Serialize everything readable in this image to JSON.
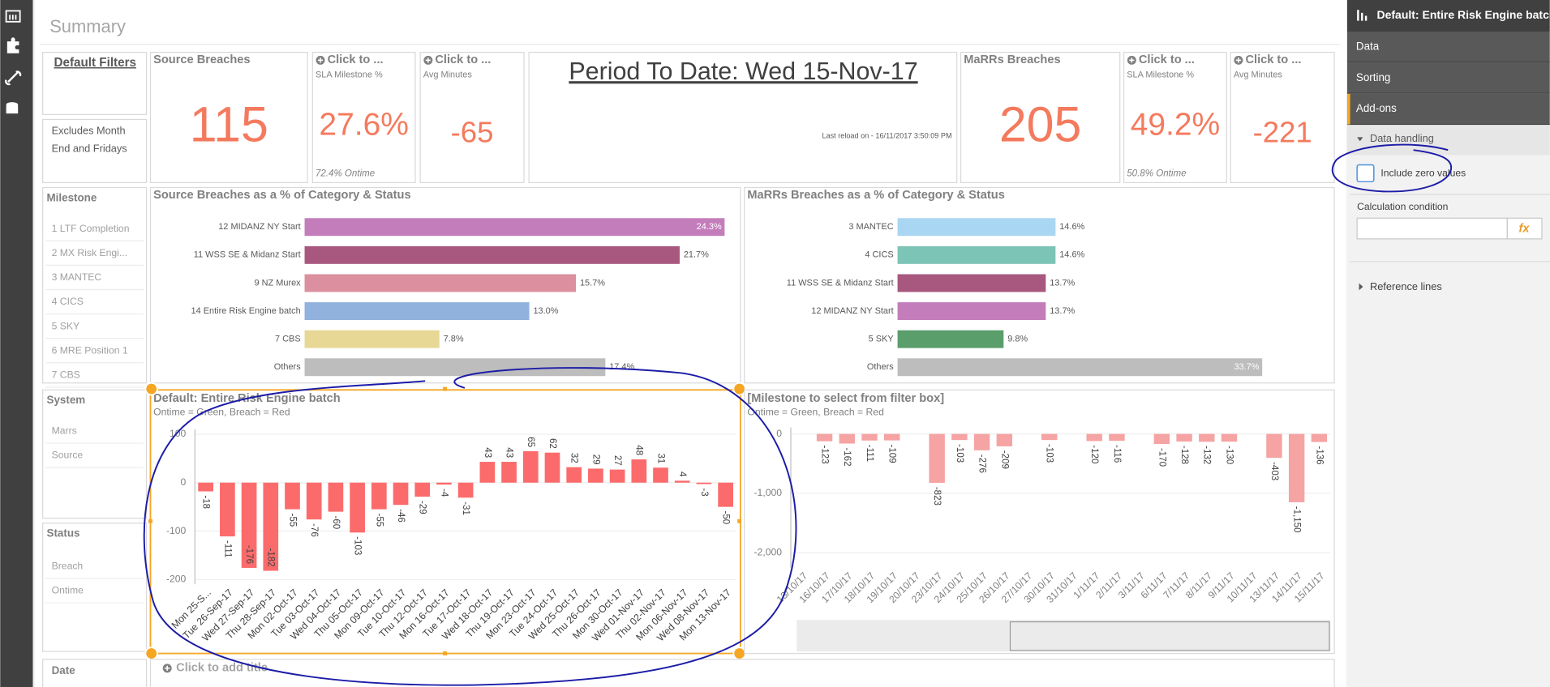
{
  "sheet": {
    "title": "Summary"
  },
  "filters": {
    "default_title": "Default Filters",
    "note": [
      "Excludes Month",
      "End and Fridays"
    ],
    "milestone": {
      "title": "Milestone",
      "items": [
        "1 LTF Completion",
        "2 MX Risk Engi...",
        "3 MANTEC",
        "4 CICS",
        "5 SKY",
        "6 MRE Position 1",
        "7 CBS"
      ]
    },
    "system": {
      "title": "System",
      "items": [
        "Marrs",
        "Source"
      ]
    },
    "status": {
      "title": "Status",
      "items": [
        "Breach",
        "Ontime"
      ]
    },
    "date": {
      "title": "Date"
    }
  },
  "kpis": [
    {
      "title": "Source Breaches",
      "value": 115
    },
    {
      "title": "Click to ...",
      "subtitle": "SLA Milestone %",
      "value": "27.6%",
      "footer": "72.4% Ontime"
    },
    {
      "title": "Click to ...",
      "subtitle": "Avg Minutes",
      "value": -65
    },
    {
      "title": "MaRRs Breaches",
      "value": 205
    },
    {
      "title": "Click to ...",
      "subtitle": "SLA Milestone %",
      "value": "49.2%",
      "footer": "50.8% Ontime"
    },
    {
      "title": "Click to ...",
      "subtitle": "Avg Minutes",
      "value": -221
    }
  ],
  "period": {
    "title": "Period To Date: Wed 15-Nov-17",
    "reload": "Last reload on - 16/11/2017 3:50:09 PM"
  },
  "charts": [
    {
      "type": "bar",
      "orientation": "horizontal",
      "title": "Source Breaches as a % of Category & Status",
      "categories": [
        "12 MIDANZ NY Start",
        "11 WSS SE & Midanz Start",
        "9 NZ Murex",
        "14 Entire Risk Engine batch",
        "7 CBS",
        "Others"
      ],
      "values": [
        24.3,
        21.7,
        15.7,
        13.0,
        7.8,
        17.4
      ],
      "value_labels": [
        "24.3%",
        "21.7%",
        "15.7%",
        "13.0%",
        "7.8%",
        "17.4%"
      ],
      "colors": [
        "#c47dbb",
        "#a8587f",
        "#dc8f9e",
        "#90b2dc",
        "#e8d896",
        "#bdbdbd"
      ],
      "xlim": [
        0,
        24.3
      ]
    },
    {
      "type": "bar",
      "orientation": "horizontal",
      "title": "MaRRs Breaches as a % of Category & Status",
      "categories": [
        "3 MANTEC",
        "4 CICS",
        "11 WSS SE & Midanz Start",
        "12 MIDANZ NY Start",
        "5 SKY",
        "Others"
      ],
      "values": [
        14.6,
        14.6,
        13.7,
        13.7,
        9.8,
        33.7
      ],
      "value_labels": [
        "14.6%",
        "14.6%",
        "13.7%",
        "13.7%",
        "9.8%",
        "33.7%"
      ],
      "colors": [
        "#a9d6f2",
        "#7cc4b5",
        "#a8587f",
        "#c47dbb",
        "#5a9e6b",
        "#bdbdbd"
      ],
      "xlim": [
        0,
        33.7
      ]
    },
    {
      "type": "bar",
      "orientation": "vertical",
      "title": "Default: Entire Risk Engine batch",
      "subtitle": "Ontime = Green, Breach = Red",
      "categories": [
        "Mon 25-S...",
        "Tue 26-Sep-17",
        "Wed 27-Sep-17",
        "Thu 28-Sep-17",
        "Mon 02-Oct-17",
        "Tue 03-Oct-17",
        "Wed 04-Oct-17",
        "Thu 05-Oct-17",
        "Mon 09-Oct-17",
        "Tue 10-Oct-17",
        "Thu 12-Oct-17",
        "Mon 16-Oct-17",
        "Tue 17-Oct-17",
        "Wed 18-Oct-17",
        "Thu 19-Oct-17",
        "Mon 23-Oct-17",
        "Tue 24-Oct-17",
        "Wed 25-Oct-17",
        "Thu 26-Oct-17",
        "Mon 30-Oct-17",
        "Wed 01-Nov-17",
        "Thu 02-Nov-17",
        "Mon 06-Nov-17",
        "Wed 08-Nov-17",
        "Mon 13-Nov-17"
      ],
      "values": [
        -18,
        -111,
        -176,
        -182,
        -55,
        -76,
        -60,
        -103,
        -55,
        -46,
        -29,
        -4,
        -31,
        43,
        43,
        65,
        62,
        32,
        29,
        27,
        48,
        31,
        4,
        -3,
        -50
      ],
      "color": "#fc6b6b",
      "ylim": [
        -210,
        110
      ],
      "yticks": [
        100,
        0,
        -100,
        -200
      ]
    },
    {
      "type": "bar",
      "orientation": "vertical",
      "title": "[Milestone to select from filter box]",
      "subtitle": "Ontime = Green, Breach = Red",
      "categories": [
        "13/10/17",
        "16/10/17",
        "17/10/17",
        "18/10/17",
        "19/10/17",
        "20/10/17",
        "23/10/17",
        "24/10/17",
        "25/10/17",
        "26/10/17",
        "27/10/17",
        "30/10/17",
        "31/10/17",
        "1/11/17",
        "2/11/17",
        "3/11/17",
        "6/11/17",
        "7/11/17",
        "8/11/17",
        "9/11/17",
        "10/11/17",
        "13/11/17",
        "14/11/17",
        "15/11/17"
      ],
      "values": [
        null,
        -123,
        -162,
        -111,
        -109,
        null,
        -823,
        -103,
        -276,
        -209,
        null,
        -103,
        null,
        -120,
        -116,
        null,
        -170,
        -128,
        -132,
        -130,
        null,
        -403,
        -1150,
        -136
      ],
      "value_labels": [
        null,
        "-123",
        "-162",
        "-111",
        "-109",
        null,
        "-823",
        "-103",
        "-276",
        "-209",
        null,
        "-103",
        null,
        "-120",
        "-116",
        null,
        "-170",
        "-128",
        "-132",
        "-130",
        null,
        "-403",
        "-1,150",
        "-136"
      ],
      "color": "#f5a3a3",
      "ylim": [
        -2250,
        110
      ],
      "yticks": [
        0,
        {
          "value": -1000,
          "label": "-1,000"
        },
        {
          "value": -2000,
          "label": "-2,000"
        }
      ]
    }
  ],
  "add_title": "Click to add title",
  "properties": {
    "header": "Default: Entire Risk Engine batch",
    "tabs": [
      "Data",
      "Sorting",
      "Add-ons"
    ],
    "section": "Data handling",
    "checkbox": "Include zero values",
    "calc_label": "Calculation condition",
    "fx": "fx",
    "reference": "Reference lines"
  }
}
